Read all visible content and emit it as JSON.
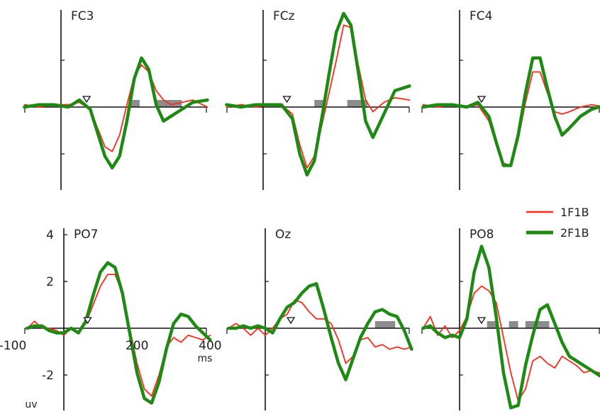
{
  "legend": {
    "items": [
      {
        "label": "1F1B",
        "color": "#ff2a1a"
      },
      {
        "label": "2F1B",
        "color": "#1e8a14"
      }
    ]
  },
  "chart_data": [
    {
      "type": "line",
      "channel": "FC3",
      "x_unit": "ms",
      "ylim": [
        -3.5,
        4.2
      ],
      "grid": false,
      "significance_windows_ms": [
        [
          185,
          215
        ],
        [
          260,
          330
        ]
      ],
      "stimulus_marker_ms": 70,
      "series": [
        {
          "name": "1F1B",
          "color": "#ff2a1a",
          "x": [
            -100,
            -60,
            -20,
            20,
            50,
            80,
            100,
            120,
            140,
            160,
            180,
            200,
            220,
            240,
            260,
            280,
            300,
            330,
            360,
            400
          ],
          "values": [
            0.1,
            0.0,
            0.1,
            0.1,
            0.2,
            -0.1,
            -0.9,
            -1.7,
            -1.9,
            -1.2,
            0.1,
            1.3,
            1.8,
            1.5,
            0.7,
            0.3,
            0.1,
            0.2,
            0.3,
            0.0
          ]
        },
        {
          "name": "2F1B",
          "color": "#1e8a14",
          "x": [
            -100,
            -60,
            -20,
            20,
            50,
            80,
            100,
            120,
            140,
            160,
            180,
            200,
            220,
            240,
            260,
            280,
            300,
            330,
            360,
            400
          ],
          "values": [
            0.0,
            0.1,
            0.1,
            0.0,
            0.3,
            -0.1,
            -1.1,
            -2.1,
            -2.6,
            -2.1,
            -0.6,
            1.2,
            2.1,
            1.6,
            0.1,
            -0.6,
            -0.4,
            -0.1,
            0.2,
            0.3
          ]
        }
      ]
    },
    {
      "type": "line",
      "channel": "FCz",
      "x_unit": "ms",
      "ylim": [
        -3.5,
        4.2
      ],
      "grid": false,
      "significance_windows_ms": [
        [
          140,
          165
        ],
        [
          230,
          285
        ]
      ],
      "stimulus_marker_ms": 65,
      "series": [
        {
          "name": "1F1B",
          "color": "#ff2a1a",
          "x": [
            -100,
            -60,
            -20,
            20,
            50,
            80,
            100,
            120,
            140,
            160,
            180,
            200,
            220,
            240,
            260,
            280,
            300,
            330,
            360,
            400
          ],
          "values": [
            0.0,
            0.1,
            0.0,
            0.1,
            0.1,
            -0.3,
            -1.6,
            -2.6,
            -2.1,
            -0.8,
            0.6,
            2.0,
            3.5,
            3.4,
            1.8,
            0.3,
            -0.2,
            0.2,
            0.4,
            0.3
          ]
        },
        {
          "name": "2F1B",
          "color": "#1e8a14",
          "x": [
            -100,
            -60,
            -20,
            20,
            50,
            80,
            100,
            120,
            140,
            160,
            180,
            200,
            220,
            240,
            260,
            280,
            300,
            330,
            360,
            400
          ],
          "values": [
            0.1,
            0.0,
            0.1,
            0.1,
            0.1,
            -0.5,
            -2.0,
            -2.9,
            -2.3,
            -0.5,
            1.4,
            3.2,
            4.0,
            3.5,
            1.5,
            -0.6,
            -1.3,
            -0.3,
            0.7,
            0.9
          ]
        }
      ]
    },
    {
      "type": "line",
      "channel": "FC4",
      "x_unit": "ms",
      "ylim": [
        -3.5,
        4.2
      ],
      "grid": false,
      "significance_windows_ms": [],
      "stimulus_marker_ms": 60,
      "series": [
        {
          "name": "1F1B",
          "color": "#ff2a1a",
          "x": [
            -100,
            -60,
            -20,
            20,
            50,
            80,
            100,
            120,
            140,
            160,
            180,
            200,
            220,
            240,
            260,
            280,
            300,
            330,
            360,
            400
          ],
          "values": [
            0.1,
            0.0,
            0.1,
            0.0,
            0.1,
            -0.6,
            -1.6,
            -2.4,
            -2.5,
            -1.4,
            0.2,
            1.5,
            1.5,
            0.6,
            -0.2,
            -0.3,
            -0.2,
            0.0,
            0.1,
            0.0
          ]
        },
        {
          "name": "2F1B",
          "color": "#1e8a14",
          "x": [
            -100,
            -60,
            -20,
            20,
            50,
            80,
            100,
            120,
            140,
            160,
            180,
            200,
            220,
            240,
            260,
            280,
            300,
            330,
            360,
            400
          ],
          "values": [
            0.0,
            0.1,
            0.1,
            0.0,
            0.2,
            -0.4,
            -1.5,
            -2.5,
            -2.5,
            -1.2,
            0.6,
            2.1,
            2.1,
            0.8,
            -0.4,
            -1.2,
            -0.9,
            -0.4,
            -0.1,
            0.1
          ]
        }
      ]
    },
    {
      "type": "line",
      "channel": "PO7",
      "x_unit": "ms",
      "ylim": [
        -3.3,
        4.2
      ],
      "grid": false,
      "significance_windows_ms": [],
      "stimulus_marker_ms": 65,
      "y_ticks": [
        4,
        2,
        -2
      ],
      "y_unit": "uv",
      "x_ticks": [
        -100,
        200,
        400
      ],
      "x_unit_label": "ms",
      "series": [
        {
          "name": "1F1B",
          "color": "#ff2a1a",
          "x": [
            -100,
            -80,
            -60,
            -40,
            -20,
            0,
            20,
            40,
            60,
            80,
            100,
            120,
            140,
            160,
            180,
            200,
            220,
            240,
            260,
            280,
            300,
            320,
            340,
            360,
            380,
            400
          ],
          "values": [
            0.0,
            0.3,
            0.0,
            0.0,
            -0.1,
            -0.3,
            0.0,
            -0.2,
            0.2,
            1.0,
            1.8,
            2.3,
            2.3,
            1.5,
            0.0,
            -1.5,
            -2.6,
            -2.9,
            -2.0,
            -0.8,
            -0.4,
            -0.6,
            -0.3,
            -0.4,
            -0.5,
            -0.3
          ]
        },
        {
          "name": "2F1B",
          "color": "#1e8a14",
          "x": [
            -100,
            -80,
            -60,
            -40,
            -20,
            0,
            20,
            40,
            60,
            80,
            100,
            120,
            140,
            160,
            180,
            200,
            220,
            240,
            260,
            280,
            300,
            320,
            340,
            360,
            380,
            400
          ],
          "values": [
            0.0,
            0.1,
            0.1,
            -0.1,
            -0.2,
            -0.2,
            0.0,
            -0.2,
            0.3,
            1.4,
            2.4,
            2.8,
            2.6,
            1.5,
            -0.2,
            -1.9,
            -3.0,
            -3.2,
            -2.3,
            -0.9,
            0.2,
            0.6,
            0.5,
            0.1,
            -0.2,
            -0.5
          ]
        }
      ]
    },
    {
      "type": "line",
      "channel": "Oz",
      "x_unit": "ms",
      "ylim": [
        -3.3,
        4.2
      ],
      "grid": false,
      "significance_windows_ms": [
        [
          300,
          355
        ]
      ],
      "stimulus_marker_ms": 70,
      "series": [
        {
          "name": "1F1B",
          "color": "#ff2a1a",
          "x": [
            -100,
            -80,
            -60,
            -40,
            -20,
            0,
            20,
            40,
            60,
            80,
            100,
            120,
            140,
            160,
            180,
            200,
            220,
            240,
            260,
            280,
            300,
            320,
            340,
            360,
            380,
            400
          ],
          "values": [
            0.0,
            0.2,
            0.0,
            -0.3,
            0.0,
            -0.3,
            0.0,
            0.4,
            0.6,
            1.2,
            1.1,
            0.7,
            0.4,
            0.4,
            0.2,
            -0.5,
            -1.5,
            -1.2,
            -0.5,
            -0.4,
            -0.8,
            -0.7,
            -0.9,
            -0.8,
            -0.9,
            -0.8
          ]
        },
        {
          "name": "2F1B",
          "color": "#1e8a14",
          "x": [
            -100,
            -80,
            -60,
            -40,
            -20,
            0,
            20,
            40,
            60,
            80,
            100,
            120,
            140,
            160,
            180,
            200,
            220,
            240,
            260,
            280,
            300,
            320,
            340,
            360,
            380,
            400
          ],
          "values": [
            0.0,
            0.0,
            0.1,
            0.0,
            0.1,
            0.0,
            -0.2,
            0.4,
            0.9,
            1.1,
            1.5,
            1.8,
            1.9,
            0.8,
            -0.4,
            -1.5,
            -2.2,
            -1.3,
            -0.4,
            0.2,
            0.7,
            0.8,
            0.6,
            0.5,
            -0.1,
            -0.9
          ]
        }
      ]
    },
    {
      "type": "line",
      "channel": "PO8",
      "x_unit": "ms",
      "ylim": [
        -3.3,
        4.2
      ],
      "grid": false,
      "significance_windows_ms": [
        [
          75,
          100
        ],
        [
          135,
          160
        ],
        [
          180,
          245
        ]
      ],
      "stimulus_marker_ms": 60,
      "series": [
        {
          "name": "1F1B",
          "color": "#ff2a1a",
          "x": [
            -100,
            -80,
            -60,
            -40,
            -20,
            0,
            20,
            40,
            60,
            80,
            100,
            120,
            140,
            160,
            180,
            200,
            220,
            240,
            260,
            280,
            300,
            320,
            340,
            360,
            380,
            400
          ],
          "values": [
            0.0,
            0.5,
            -0.3,
            0.1,
            -0.4,
            -0.1,
            0.5,
            1.5,
            1.8,
            1.6,
            1.1,
            -0.4,
            -1.9,
            -3.1,
            -2.6,
            -1.4,
            -1.2,
            -1.5,
            -1.7,
            -1.2,
            -1.4,
            -1.6,
            -1.9,
            -1.8,
            -1.9,
            -2.0
          ]
        },
        {
          "name": "2F1B",
          "color": "#1e8a14",
          "x": [
            -100,
            -80,
            -60,
            -40,
            -20,
            0,
            20,
            40,
            60,
            80,
            100,
            120,
            140,
            160,
            180,
            200,
            220,
            240,
            260,
            280,
            300,
            320,
            340,
            360,
            380,
            400
          ],
          "values": [
            0.0,
            0.1,
            -0.2,
            -0.4,
            -0.3,
            -0.4,
            0.4,
            2.4,
            3.5,
            2.6,
            0.5,
            -1.9,
            -3.4,
            -3.3,
            -1.6,
            -0.3,
            0.8,
            1.0,
            0.2,
            -0.6,
            -1.2,
            -1.4,
            -1.6,
            -1.8,
            -2.0,
            -2.2
          ]
        }
      ]
    }
  ],
  "axis_labels": {
    "x_ticks": [
      "-100",
      "200",
      "400"
    ],
    "x_unit": "ms",
    "y_ticks": [
      "4",
      "2",
      "-2"
    ],
    "y_unit": "uv"
  }
}
